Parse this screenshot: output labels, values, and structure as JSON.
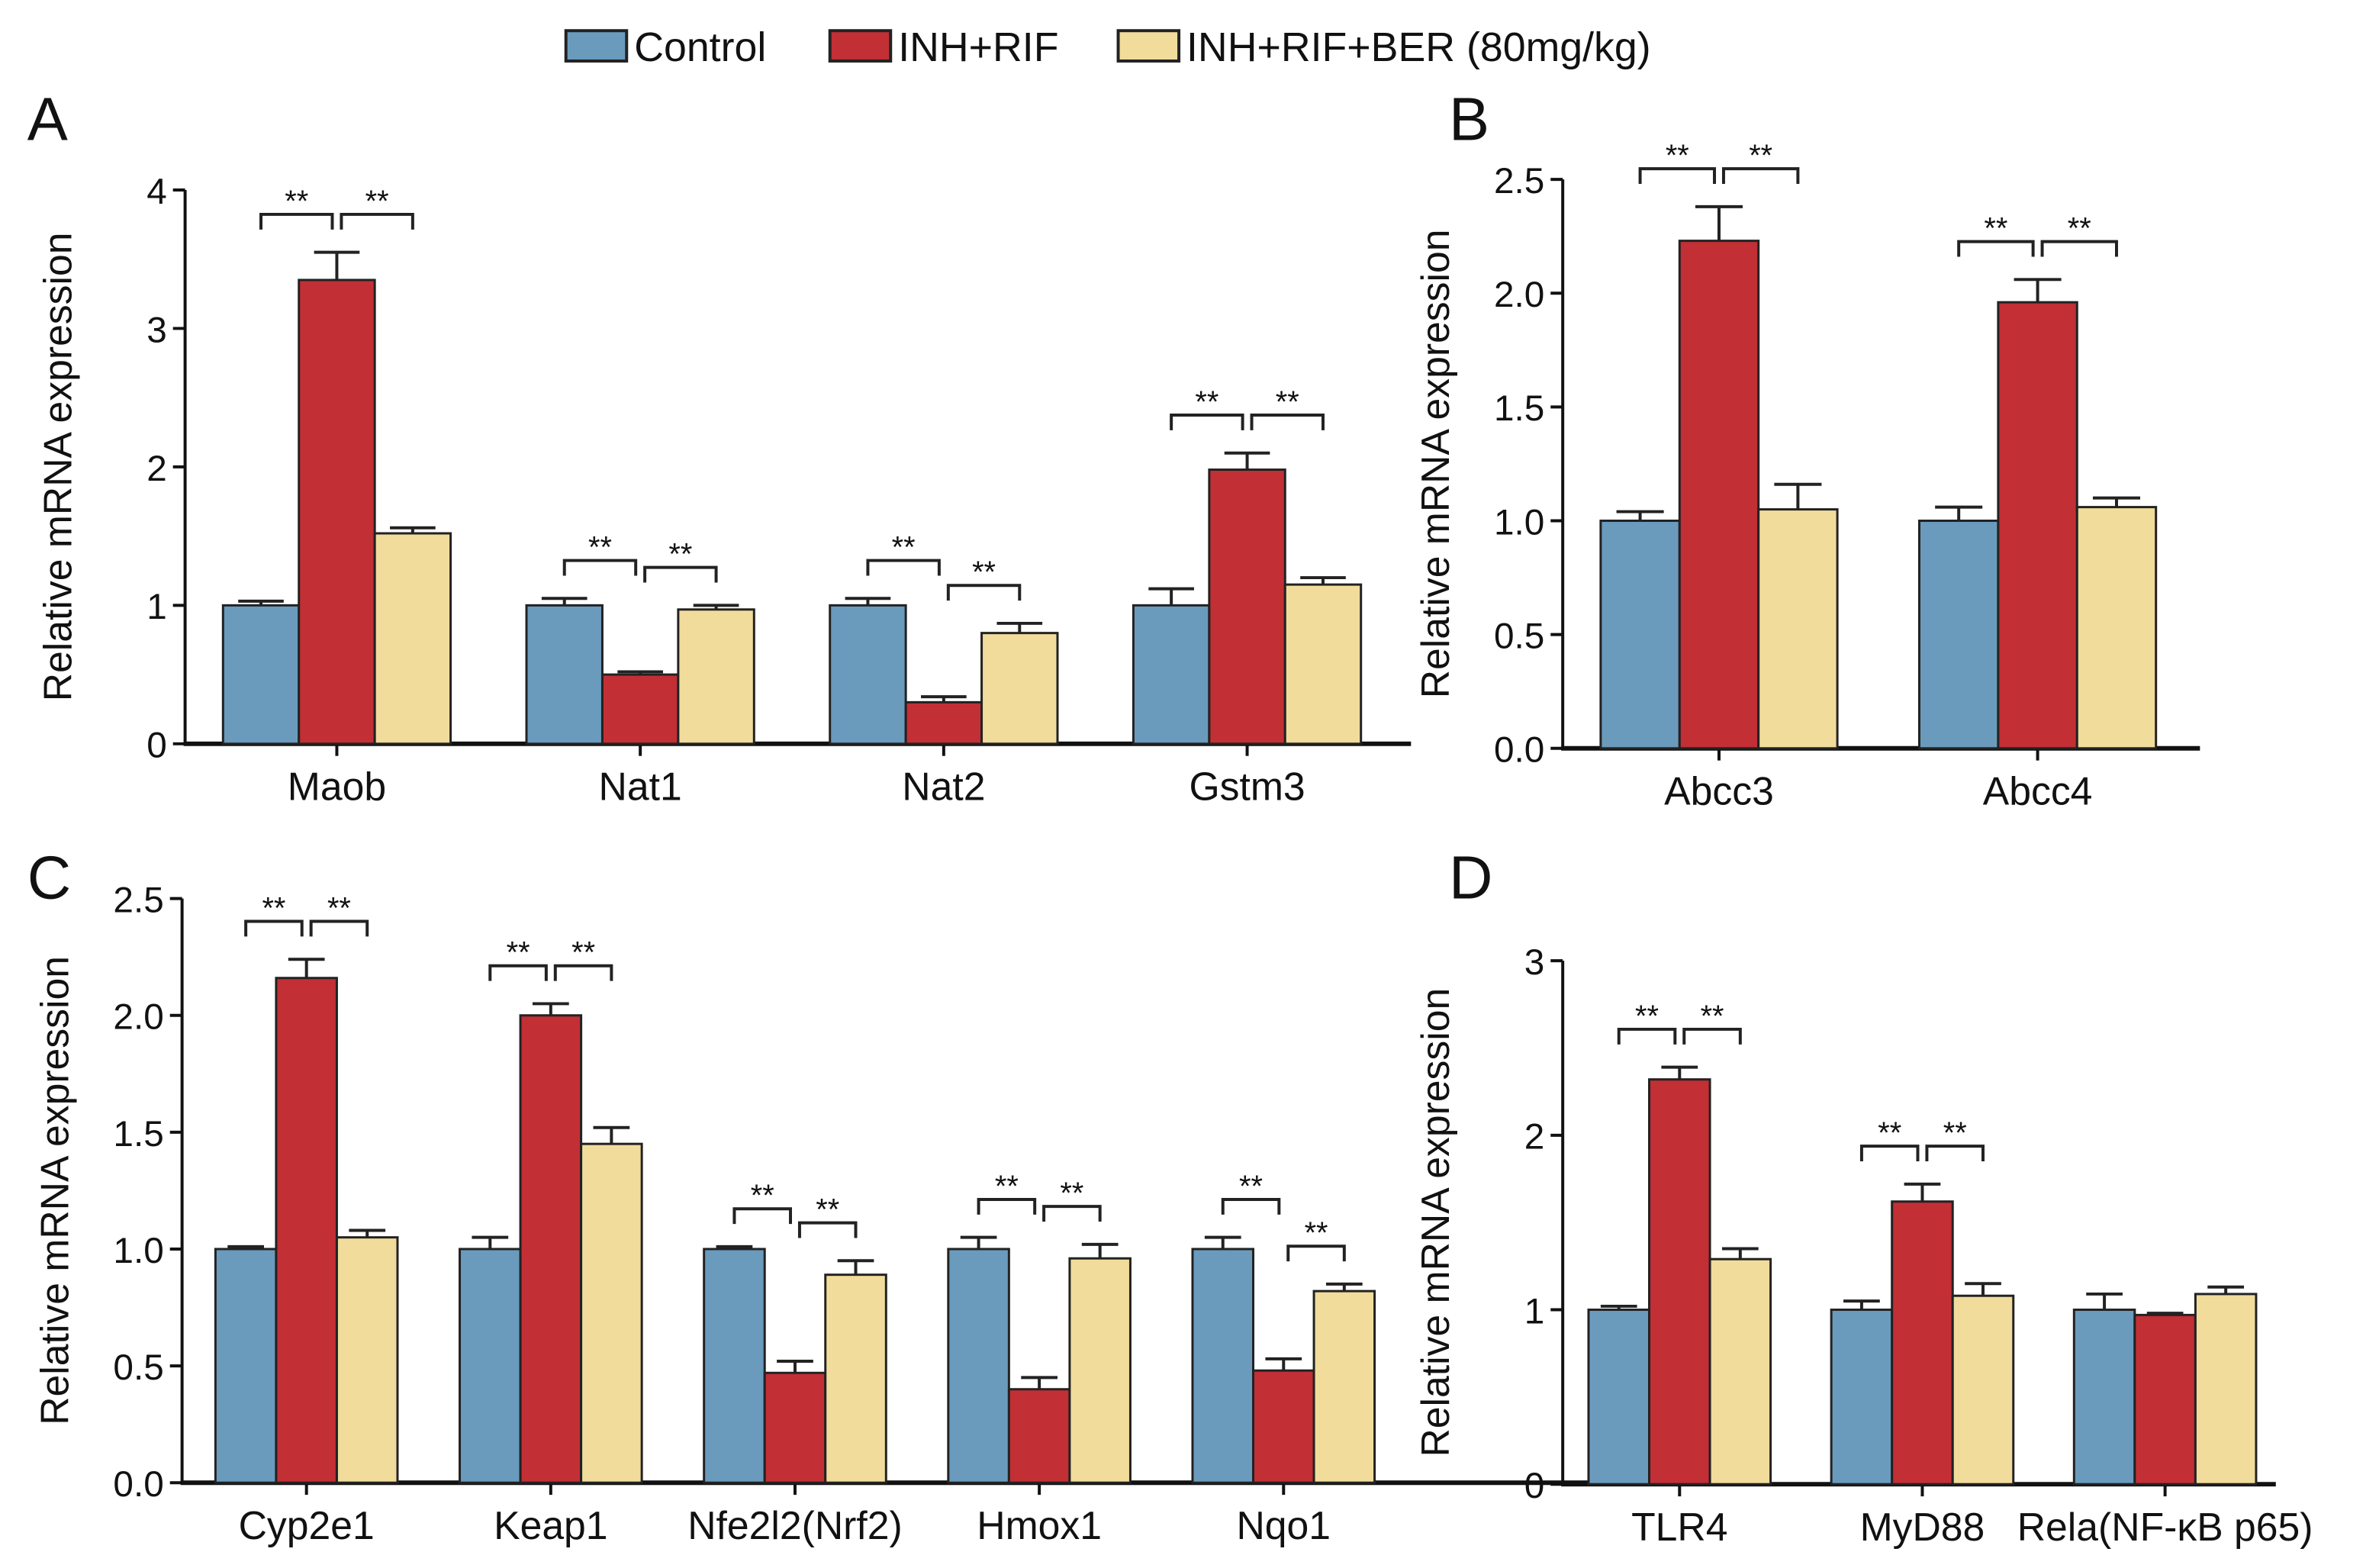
{
  "legend": [
    {
      "label": "Control",
      "color": "#6a9bbd"
    },
    {
      "label": "INH+RIF",
      "color": "#c22f35"
    },
    {
      "label": "INH+RIF+BER (80mg/kg)",
      "color": "#f1dc9c"
    }
  ],
  "chart_data": [
    {
      "panel": "A",
      "type": "bar",
      "ylabel": "Relative mRNA expression",
      "ylim": [
        0,
        4
      ],
      "yticks": [
        "0",
        "1",
        "2",
        "3",
        "4"
      ],
      "categories": [
        "Maob",
        "Nat1",
        "Nat2",
        "Gstm3"
      ],
      "series": [
        {
          "name": "Control",
          "values": [
            1.0,
            1.0,
            1.0,
            1.0
          ],
          "errors": [
            0.03,
            0.05,
            0.05,
            0.12
          ]
        },
        {
          "name": "INH+RIF",
          "values": [
            3.35,
            0.5,
            0.3,
            1.98
          ],
          "errors": [
            0.2,
            0.02,
            0.04,
            0.12
          ]
        },
        {
          "name": "INH+RIF+BER (80mg/kg)",
          "values": [
            1.52,
            0.97,
            0.8,
            1.15
          ],
          "errors": [
            0.04,
            0.03,
            0.07,
            0.05
          ]
        }
      ],
      "significance": "**"
    },
    {
      "panel": "B",
      "type": "bar",
      "ylabel": "Relative mRNA expression",
      "ylim": [
        0,
        2.5
      ],
      "yticks": [
        "0.0",
        "0.5",
        "1.0",
        "1.5",
        "2.0",
        "2.5"
      ],
      "categories": [
        "Abcc3",
        "Abcc4"
      ],
      "series": [
        {
          "name": "Control",
          "values": [
            1.0,
            1.0
          ],
          "errors": [
            0.04,
            0.06
          ]
        },
        {
          "name": "INH+RIF",
          "values": [
            2.23,
            1.96
          ],
          "errors": [
            0.15,
            0.1
          ]
        },
        {
          "name": "INH+RIF+BER (80mg/kg)",
          "values": [
            1.05,
            1.06
          ],
          "errors": [
            0.11,
            0.04
          ]
        }
      ],
      "significance": "**"
    },
    {
      "panel": "C",
      "type": "bar",
      "ylabel": "Relative mRNA expression",
      "ylim": [
        0,
        2.5
      ],
      "yticks": [
        "0.0",
        "0.5",
        "1.0",
        "1.5",
        "2.0",
        "2.5"
      ],
      "categories": [
        "Cyp2e1",
        "Keap1",
        "Nfe2l2(Nrf2)",
        "Hmox1",
        "Nqo1"
      ],
      "series": [
        {
          "name": "Control",
          "values": [
            1.0,
            1.0,
            1.0,
            1.0,
            1.0
          ],
          "errors": [
            0.01,
            0.05,
            0.01,
            0.05,
            0.05
          ]
        },
        {
          "name": "INH+RIF",
          "values": [
            2.16,
            2.0,
            0.47,
            0.4,
            0.48
          ],
          "errors": [
            0.08,
            0.05,
            0.05,
            0.05,
            0.05
          ]
        },
        {
          "name": "INH+RIF+BER (80mg/kg)",
          "values": [
            1.05,
            1.45,
            0.89,
            0.96,
            0.82
          ],
          "errors": [
            0.03,
            0.07,
            0.06,
            0.06,
            0.03
          ]
        }
      ],
      "significance": "**"
    },
    {
      "panel": "D",
      "type": "bar",
      "ylabel": "Relative mRNA expression",
      "ylim": [
        0,
        3
      ],
      "yticks": [
        "0",
        "1",
        "2",
        "3"
      ],
      "categories": [
        "TLR4",
        "MyD88",
        "Rela(NF-κB p65)"
      ],
      "series": [
        {
          "name": "Control",
          "values": [
            1.0,
            1.0,
            1.0
          ],
          "errors": [
            0.02,
            0.05,
            0.09
          ]
        },
        {
          "name": "INH+RIF",
          "values": [
            2.32,
            1.62,
            0.97
          ],
          "errors": [
            0.07,
            0.1,
            0.01
          ]
        },
        {
          "name": "INH+RIF+BER (80mg/kg)",
          "values": [
            1.29,
            1.08,
            1.09
          ],
          "errors": [
            0.06,
            0.07,
            0.04
          ]
        }
      ],
      "significant_groups": [
        true,
        true,
        false
      ],
      "significance": "**"
    }
  ]
}
